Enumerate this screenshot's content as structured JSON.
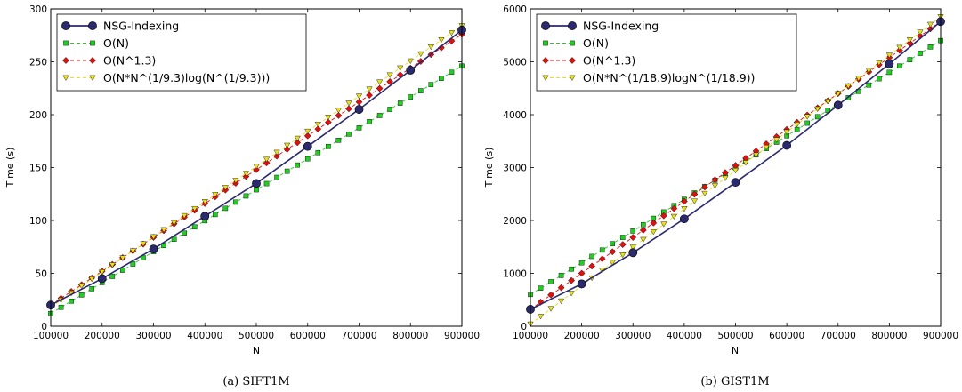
{
  "chart_data": [
    {
      "type": "line",
      "caption": "(a)  SIFT1M",
      "xlabel": "N",
      "ylabel": "Time (s)",
      "xlim": [
        100000,
        900000
      ],
      "ylim": [
        0,
        300
      ],
      "xticks": [
        100000,
        200000,
        300000,
        400000,
        500000,
        600000,
        700000,
        800000,
        900000
      ],
      "yticks": [
        0,
        50,
        100,
        150,
        200,
        250,
        300
      ],
      "legend_position": "top-left",
      "grid": false,
      "series": [
        {
          "name": "NSG-Indexing",
          "color": "#2b2a6e",
          "marker": "circle",
          "linestyle": "solid",
          "x": [
            100000,
            200000,
            300000,
            400000,
            500000,
            600000,
            700000,
            800000,
            900000
          ],
          "y": [
            20,
            45,
            73,
            104,
            135,
            170,
            205,
            242,
            280
          ]
        },
        {
          "name": "O(N)",
          "color": "#22cc22",
          "marker": "square",
          "linestyle": "dashed",
          "x": [
            100000,
            900000
          ],
          "y": [
            12,
            246
          ]
        },
        {
          "name": "O(N^1.3)",
          "color": "#e01010",
          "marker": "diamond",
          "linestyle": "dashed",
          "x": [
            100000,
            900000
          ],
          "y": [
            20,
            276
          ]
        },
        {
          "name": "O(N*N^(1/9.3)log(N^(1/9.3)))",
          "color": "#e6e020",
          "marker": "triangle-down",
          "linestyle": "dashed",
          "x": [
            100000,
            900000
          ],
          "y": [
            18,
            284
          ]
        }
      ]
    },
    {
      "type": "line",
      "caption": "(b)  GIST1M",
      "xlabel": "N",
      "ylabel": "Time (s)",
      "xlim": [
        100000,
        900000
      ],
      "ylim": [
        0,
        6000
      ],
      "xticks": [
        100000,
        200000,
        300000,
        400000,
        500000,
        600000,
        700000,
        800000,
        900000
      ],
      "yticks": [
        0,
        1000,
        2000,
        3000,
        4000,
        5000,
        6000
      ],
      "legend_position": "top-left",
      "grid": false,
      "series": [
        {
          "name": "NSG-Indexing",
          "color": "#2b2a6e",
          "marker": "circle",
          "linestyle": "solid",
          "x": [
            100000,
            200000,
            300000,
            400000,
            500000,
            600000,
            700000,
            800000,
            900000
          ],
          "y": [
            320,
            800,
            1390,
            2030,
            2720,
            3420,
            4180,
            4960,
            5760
          ]
        },
        {
          "name": "O(N)",
          "color": "#22cc22",
          "marker": "square",
          "linestyle": "dashed",
          "x": [
            100000,
            900000
          ],
          "y": [
            600,
            5400
          ]
        },
        {
          "name": "O(N^1.3)",
          "color": "#e01010",
          "marker": "diamond",
          "linestyle": "dashed",
          "x": [
            100000,
            900000
          ],
          "y": [
            320,
            5760
          ]
        },
        {
          "name": "O(N*N^(1/18.9)logN^(1/18.9))",
          "color": "#e6e020",
          "marker": "triangle-down",
          "linestyle": "dashed",
          "x": [
            100000,
            900000
          ],
          "y": [
            40,
            5850
          ]
        }
      ]
    }
  ]
}
